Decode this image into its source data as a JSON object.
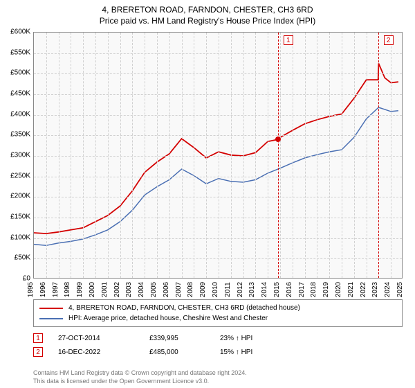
{
  "title_line1": "4, BRERETON ROAD, FARNDON, CHESTER, CH3 6RD",
  "title_line2": "Price paid vs. HM Land Registry's House Price Index (HPI)",
  "chart": {
    "type": "line",
    "background_color": "#f9f9f9",
    "grid_color": "#d0d0d0",
    "border_color": "#888888",
    "y": {
      "min": 0,
      "max": 600000,
      "step": 50000,
      "labels": [
        "£0",
        "£50K",
        "£100K",
        "£150K",
        "£200K",
        "£250K",
        "£300K",
        "£350K",
        "£400K",
        "£450K",
        "£500K",
        "£550K",
        "£600K"
      ],
      "label_fontsize": 10
    },
    "x": {
      "min": 1995,
      "max": 2025,
      "step": 1,
      "labels": [
        "1995",
        "1996",
        "1997",
        "1998",
        "1999",
        "2000",
        "2001",
        "2002",
        "2003",
        "2004",
        "2005",
        "2006",
        "2007",
        "2008",
        "2009",
        "2010",
        "2011",
        "2012",
        "2013",
        "2014",
        "2015",
        "2016",
        "2017",
        "2018",
        "2019",
        "2020",
        "2021",
        "2022",
        "2023",
        "2024",
        "2025"
      ],
      "label_fontsize": 10,
      "label_rotation": -90
    },
    "series": [
      {
        "name": "price_paid",
        "label": "4, BRERETON ROAD, FARNDON, CHESTER, CH3 6RD (detached house)",
        "color": "#d40000",
        "width": 1.8,
        "points": [
          [
            1995,
            113000
          ],
          [
            1996,
            111000
          ],
          [
            1997,
            115000
          ],
          [
            1998,
            120000
          ],
          [
            1999,
            125000
          ],
          [
            2000,
            140000
          ],
          [
            2001,
            155000
          ],
          [
            2002,
            178000
          ],
          [
            2003,
            215000
          ],
          [
            2004,
            260000
          ],
          [
            2005,
            285000
          ],
          [
            2006,
            305000
          ],
          [
            2007,
            342000
          ],
          [
            2008,
            320000
          ],
          [
            2009,
            295000
          ],
          [
            2010,
            310000
          ],
          [
            2011,
            302000
          ],
          [
            2012,
            300000
          ],
          [
            2013,
            308000
          ],
          [
            2014,
            335000
          ],
          [
            2014.82,
            339995
          ],
          [
            2015,
            345000
          ],
          [
            2016,
            362000
          ],
          [
            2017,
            378000
          ],
          [
            2018,
            388000
          ],
          [
            2019,
            396000
          ],
          [
            2020,
            402000
          ],
          [
            2021,
            440000
          ],
          [
            2022,
            485000
          ],
          [
            2022.96,
            485000
          ],
          [
            2023,
            525000
          ],
          [
            2023.5,
            490000
          ],
          [
            2024,
            478000
          ],
          [
            2024.6,
            480000
          ]
        ]
      },
      {
        "name": "hpi",
        "label": "HPI: Average price, detached house, Cheshire West and Chester",
        "color": "#4a6fb3",
        "width": 1.5,
        "points": [
          [
            1995,
            85000
          ],
          [
            1996,
            82000
          ],
          [
            1997,
            88000
          ],
          [
            1998,
            92000
          ],
          [
            1999,
            98000
          ],
          [
            2000,
            108000
          ],
          [
            2001,
            120000
          ],
          [
            2002,
            140000
          ],
          [
            2003,
            168000
          ],
          [
            2004,
            205000
          ],
          [
            2005,
            225000
          ],
          [
            2006,
            242000
          ],
          [
            2007,
            268000
          ],
          [
            2008,
            252000
          ],
          [
            2009,
            232000
          ],
          [
            2010,
            245000
          ],
          [
            2011,
            238000
          ],
          [
            2012,
            236000
          ],
          [
            2013,
            242000
          ],
          [
            2014,
            258000
          ],
          [
            2015,
            270000
          ],
          [
            2016,
            283000
          ],
          [
            2017,
            295000
          ],
          [
            2018,
            303000
          ],
          [
            2019,
            310000
          ],
          [
            2020,
            315000
          ],
          [
            2021,
            345000
          ],
          [
            2022,
            390000
          ],
          [
            2023,
            418000
          ],
          [
            2024,
            408000
          ],
          [
            2024.6,
            410000
          ]
        ]
      }
    ],
    "markers": [
      {
        "id": "1",
        "x": 2014.82,
        "color": "#d40000",
        "dot_y": 339995,
        "box_x_offset": 8
      },
      {
        "id": "2",
        "x": 2022.96,
        "color": "#d40000",
        "dot_y": null,
        "box_x_offset": 8
      }
    ]
  },
  "legend": {
    "border_color": "#888888",
    "rows": [
      {
        "color": "#d40000",
        "label_path": "chart.series.0.label"
      },
      {
        "color": "#4a6fb3",
        "label_path": "chart.series.1.label"
      }
    ]
  },
  "sales": [
    {
      "num": "1",
      "color": "#d40000",
      "date": "27-OCT-2014",
      "price": "£339,995",
      "delta": "23% ↑ HPI"
    },
    {
      "num": "2",
      "color": "#d40000",
      "date": "16-DEC-2022",
      "price": "£485,000",
      "delta": "15% ↑ HPI"
    }
  ],
  "footer_line1": "Contains HM Land Registry data © Crown copyright and database right 2024.",
  "footer_line2": "This data is licensed under the Open Government Licence v3.0."
}
